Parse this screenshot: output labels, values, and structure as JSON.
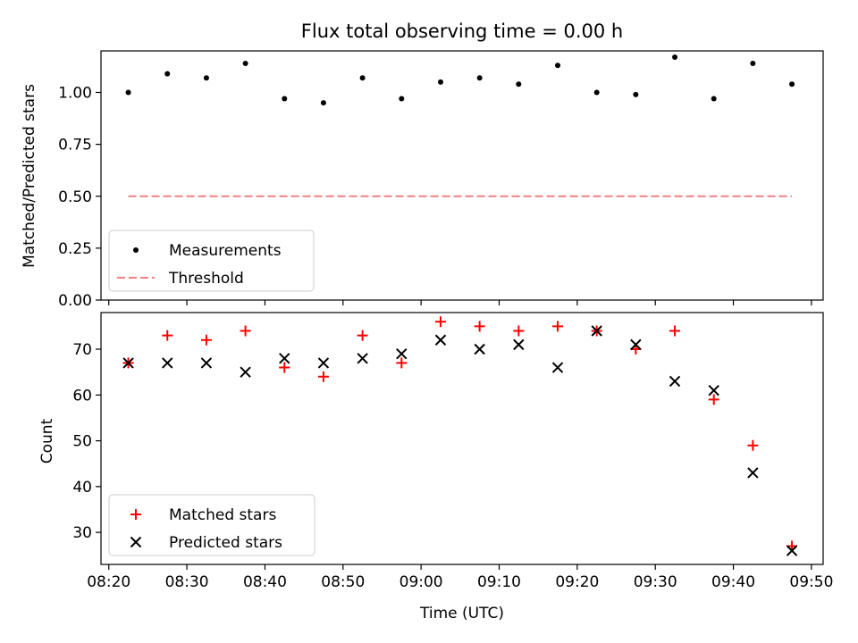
{
  "title": "Flux total observing time = 0.00 h",
  "colors": {
    "measurement": "#000000",
    "threshold": "#f08080",
    "matched": "#ff0000",
    "predicted": "#000000",
    "axis": "#000000"
  },
  "chart_data": [
    {
      "type": "scatter",
      "ylabel": "Matched/Predicted stars",
      "ylim": [
        0,
        1.2
      ],
      "yticks": [
        "0.00",
        "0.25",
        "0.50",
        "0.75",
        "1.00"
      ],
      "legend_location": "lower-left",
      "series": [
        {
          "name": "Measurements",
          "kind": "points",
          "x": [
            "08:22:30",
            "08:27:30",
            "08:32:30",
            "08:37:30",
            "08:42:30",
            "08:47:30",
            "08:52:30",
            "08:57:30",
            "09:02:30",
            "09:07:30",
            "09:12:30",
            "09:17:30",
            "09:22:30",
            "09:27:30",
            "09:32:30",
            "09:37:30",
            "09:42:30",
            "09:47:30"
          ],
          "values": [
            1.0,
            1.09,
            1.07,
            1.14,
            0.97,
            0.95,
            1.07,
            0.97,
            1.05,
            1.07,
            1.04,
            1.13,
            1.0,
            0.99,
            1.17,
            0.97,
            1.14,
            1.04
          ]
        },
        {
          "name": "Threshold",
          "kind": "dashed-line",
          "x": [
            "08:22:30",
            "09:47:30"
          ],
          "values": [
            0.5,
            0.5
          ]
        }
      ]
    },
    {
      "type": "scatter",
      "ylabel": "Count",
      "xlabel": "Time (UTC)",
      "ylim": [
        23,
        78
      ],
      "yticks": [
        "30",
        "40",
        "50",
        "60",
        "70"
      ],
      "xticks": [
        "08:20",
        "08:30",
        "08:40",
        "08:50",
        "09:00",
        "09:10",
        "09:20",
        "09:30",
        "09:40",
        "09:50"
      ],
      "xlim": [
        "08:19:00",
        "09:51:30"
      ],
      "legend_location": "lower-left",
      "series": [
        {
          "name": "Matched stars",
          "marker": "plus",
          "x": [
            "08:22:30",
            "08:27:30",
            "08:32:30",
            "08:37:30",
            "08:42:30",
            "08:47:30",
            "08:52:30",
            "08:57:30",
            "09:02:30",
            "09:07:30",
            "09:12:30",
            "09:17:30",
            "09:22:30",
            "09:27:30",
            "09:32:30",
            "09:37:30",
            "09:42:30",
            "09:47:30"
          ],
          "values": [
            67,
            73,
            72,
            74,
            66,
            64,
            73,
            67,
            76,
            75,
            74,
            75,
            74,
            70,
            74,
            59,
            49,
            27
          ]
        },
        {
          "name": "Predicted stars",
          "marker": "x",
          "x": [
            "08:22:30",
            "08:27:30",
            "08:32:30",
            "08:37:30",
            "08:42:30",
            "08:47:30",
            "08:52:30",
            "08:57:30",
            "09:02:30",
            "09:07:30",
            "09:12:30",
            "09:17:30",
            "09:22:30",
            "09:27:30",
            "09:32:30",
            "09:37:30",
            "09:42:30",
            "09:47:30"
          ],
          "values": [
            67,
            67,
            67,
            65,
            68,
            67,
            68,
            69,
            72,
            70,
            71,
            66,
            74,
            71,
            63,
            61,
            43,
            26
          ]
        }
      ]
    }
  ]
}
